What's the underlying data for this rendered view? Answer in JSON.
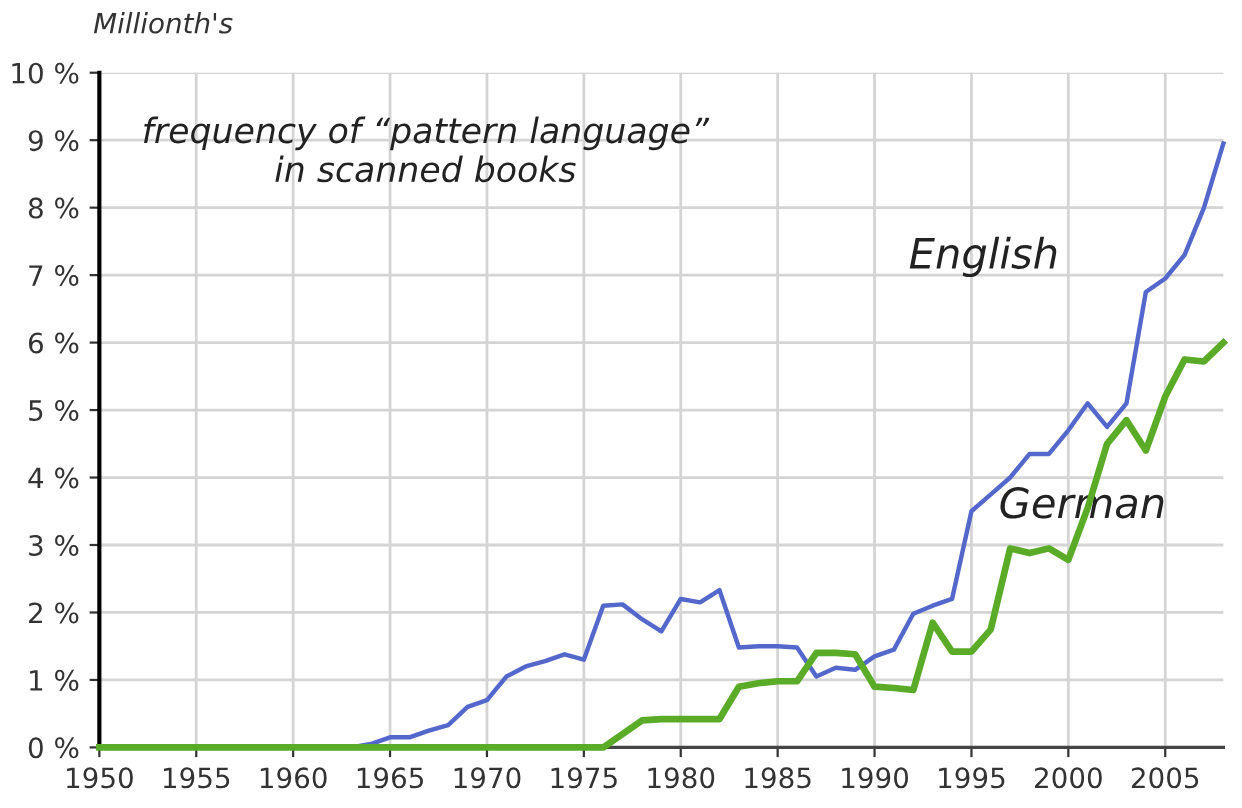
{
  "chart_data": {
    "type": "line",
    "title": "frequency of “pattern language”\nin scanned books",
    "ylabel": "Millionth's",
    "x": [
      1950,
      1951,
      1952,
      1953,
      1954,
      1955,
      1956,
      1957,
      1958,
      1959,
      1960,
      1961,
      1962,
      1963,
      1964,
      1965,
      1966,
      1967,
      1968,
      1969,
      1970,
      1971,
      1972,
      1973,
      1974,
      1975,
      1976,
      1977,
      1978,
      1979,
      1980,
      1981,
      1982,
      1983,
      1984,
      1985,
      1986,
      1987,
      1988,
      1989,
      1990,
      1991,
      1992,
      1993,
      1994,
      1995,
      1996,
      1997,
      1998,
      1999,
      2000,
      2001,
      2002,
      2003,
      2004,
      2005,
      2006,
      2007,
      2008
    ],
    "series": [
      {
        "name": "English",
        "color": "#5468cc",
        "values": [
          null,
          null,
          null,
          null,
          null,
          null,
          null,
          null,
          null,
          null,
          null,
          null,
          0,
          0,
          0.05,
          0.15,
          0.15,
          0.25,
          0.33,
          0.6,
          0.7,
          1.05,
          1.2,
          1.28,
          1.38,
          1.3,
          2.1,
          2.12,
          1.9,
          1.72,
          2.2,
          2.15,
          2.33,
          1.48,
          1.5,
          1.5,
          1.48,
          1.05,
          1.18,
          1.15,
          1.35,
          1.45,
          1.98,
          2.1,
          2.2,
          3.5,
          3.75,
          4.0,
          4.35,
          4.35,
          4.7,
          5.1,
          4.75,
          5.1,
          6.75,
          6.95,
          7.3,
          8.0,
          8.95
        ]
      },
      {
        "name": "German",
        "color": "#5aab28",
        "values": [
          0,
          0,
          0,
          0,
          0,
          0,
          0,
          0,
          0,
          0,
          0,
          0,
          0,
          0,
          0,
          0,
          0,
          0,
          0,
          0,
          0,
          0,
          0,
          0,
          0,
          0,
          0,
          0.2,
          0.4,
          0.42,
          0.42,
          0.42,
          0.42,
          0.9,
          0.95,
          0.98,
          0.98,
          1.4,
          1.4,
          1.38,
          0.9,
          0.88,
          0.85,
          1.85,
          1.42,
          1.42,
          1.75,
          2.95,
          2.88,
          2.95,
          2.78,
          3.55,
          4.5,
          4.85,
          4.4,
          5.2,
          5.75,
          5.72,
          6.0
        ]
      }
    ],
    "xlim": [
      1950,
      2008
    ],
    "xticks": [
      1950,
      1955,
      1960,
      1965,
      1970,
      1975,
      1980,
      1985,
      1990,
      1995,
      2000,
      2005
    ],
    "ylim": [
      0,
      10
    ],
    "yticks": [
      {
        "value": 0,
        "label": "0 %"
      },
      {
        "value": 1,
        "label": "1 %"
      },
      {
        "value": 2,
        "label": "2 %"
      },
      {
        "value": 3,
        "label": "3 %"
      },
      {
        "value": 4,
        "label": "4 %"
      },
      {
        "value": 5,
        "label": "5 %"
      },
      {
        "value": 6,
        "label": "6 %"
      },
      {
        "value": 7,
        "label": "7 %"
      },
      {
        "value": 8,
        "label": "8 %"
      },
      {
        "value": 9,
        "label": "9 %"
      },
      {
        "value": 10,
        "label": "10 %"
      }
    ],
    "grid": true,
    "legend": false,
    "line_style": "solid",
    "marker": "none"
  }
}
